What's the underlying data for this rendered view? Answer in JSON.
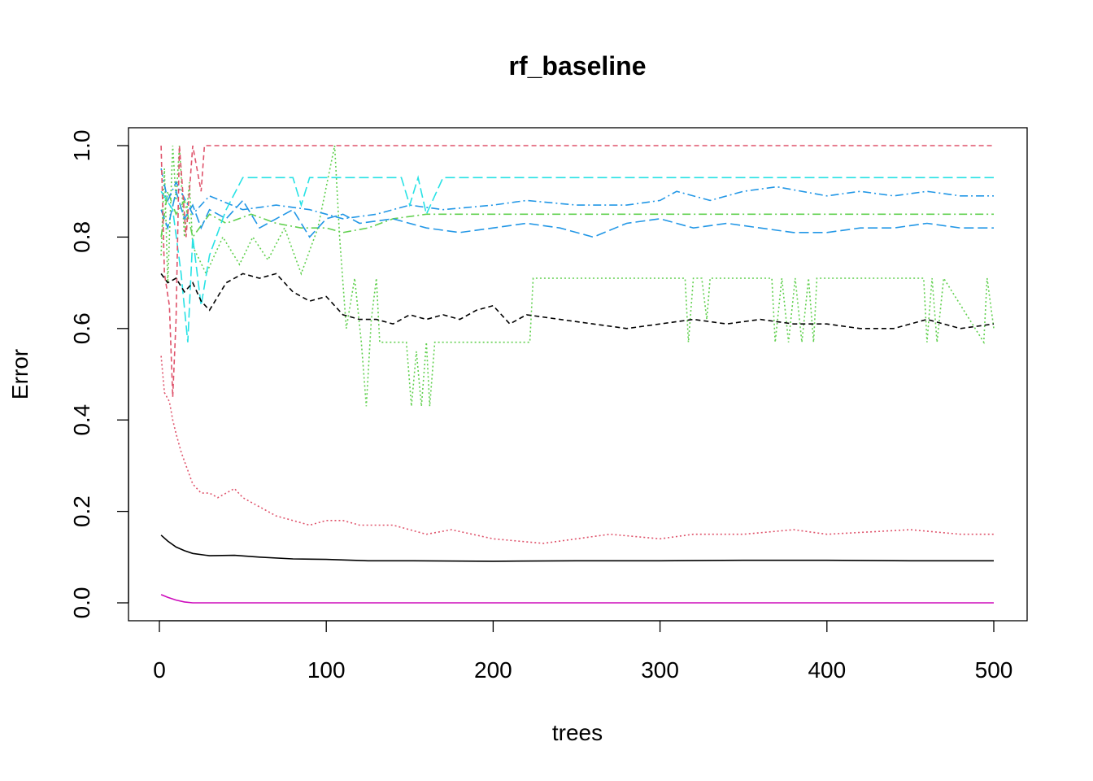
{
  "chart_data": {
    "type": "line",
    "title": "rf_baseline",
    "xlabel": "trees",
    "ylabel": "Error",
    "xlim": [
      0,
      500
    ],
    "ylim": [
      0.0,
      1.0
    ],
    "x_ticks": [
      "0",
      "100",
      "200",
      "300",
      "400",
      "500"
    ],
    "y_ticks": [
      "0.0",
      "0.2",
      "0.4",
      "0.6",
      "0.8",
      "1.0"
    ],
    "grid": false,
    "legend": "none",
    "series": [
      {
        "color": "#000000",
        "dash": "solid",
        "points": [
          [
            1,
            0.148
          ],
          [
            5,
            0.135
          ],
          [
            10,
            0.122
          ],
          [
            15,
            0.114
          ],
          [
            20,
            0.108
          ],
          [
            30,
            0.103
          ],
          [
            45,
            0.104
          ],
          [
            60,
            0.1
          ],
          [
            80,
            0.096
          ],
          [
            100,
            0.095
          ],
          [
            125,
            0.092
          ],
          [
            150,
            0.092
          ],
          [
            200,
            0.091
          ],
          [
            250,
            0.092
          ],
          [
            300,
            0.092
          ],
          [
            350,
            0.093
          ],
          [
            400,
            0.093
          ],
          [
            450,
            0.092
          ],
          [
            500,
            0.092
          ]
        ]
      },
      {
        "color": "#DF536B",
        "dash": "dotted",
        "points": [
          [
            1,
            0.54
          ],
          [
            3,
            0.46
          ],
          [
            6,
            0.44
          ],
          [
            8,
            0.4
          ],
          [
            10,
            0.37
          ],
          [
            13,
            0.33
          ],
          [
            16,
            0.3
          ],
          [
            20,
            0.26
          ],
          [
            25,
            0.24
          ],
          [
            30,
            0.24
          ],
          [
            35,
            0.23
          ],
          [
            40,
            0.24
          ],
          [
            45,
            0.25
          ],
          [
            50,
            0.23
          ],
          [
            55,
            0.22
          ],
          [
            60,
            0.21
          ],
          [
            70,
            0.19
          ],
          [
            80,
            0.18
          ],
          [
            90,
            0.17
          ],
          [
            100,
            0.18
          ],
          [
            110,
            0.18
          ],
          [
            120,
            0.17
          ],
          [
            140,
            0.17
          ],
          [
            160,
            0.15
          ],
          [
            175,
            0.16
          ],
          [
            200,
            0.14
          ],
          [
            230,
            0.13
          ],
          [
            250,
            0.14
          ],
          [
            270,
            0.15
          ],
          [
            300,
            0.14
          ],
          [
            320,
            0.15
          ],
          [
            350,
            0.15
          ],
          [
            380,
            0.16
          ],
          [
            400,
            0.15
          ],
          [
            450,
            0.16
          ],
          [
            480,
            0.15
          ],
          [
            500,
            0.15
          ]
        ]
      },
      {
        "color": "#61D04F",
        "dash": "dotted",
        "points": [
          [
            1,
            0.76
          ],
          [
            3,
            0.95
          ],
          [
            5,
            0.7
          ],
          [
            8,
            1.0
          ],
          [
            10,
            0.88
          ],
          [
            12,
            1.0
          ],
          [
            15,
            0.8
          ],
          [
            18,
            0.92
          ],
          [
            20,
            0.78
          ],
          [
            28,
            0.72
          ],
          [
            38,
            0.8
          ],
          [
            48,
            0.74
          ],
          [
            56,
            0.8
          ],
          [
            65,
            0.75
          ],
          [
            75,
            0.82
          ],
          [
            85,
            0.72
          ],
          [
            95,
            0.82
          ],
          [
            105,
            1.0
          ],
          [
            108,
            0.8
          ],
          [
            112,
            0.6
          ],
          [
            117,
            0.71
          ],
          [
            121,
            0.57
          ],
          [
            124,
            0.43
          ],
          [
            127,
            0.62
          ],
          [
            130,
            0.71
          ],
          [
            132,
            0.57
          ],
          [
            148,
            0.57
          ],
          [
            151,
            0.43
          ],
          [
            154,
            0.55
          ],
          [
            157,
            0.43
          ],
          [
            160,
            0.57
          ],
          [
            162,
            0.43
          ],
          [
            165,
            0.57
          ],
          [
            222,
            0.57
          ],
          [
            224,
            0.71
          ],
          [
            315,
            0.71
          ],
          [
            317,
            0.57
          ],
          [
            320,
            0.71
          ],
          [
            325,
            0.71
          ],
          [
            328,
            0.62
          ],
          [
            330,
            0.71
          ],
          [
            367,
            0.71
          ],
          [
            369,
            0.57
          ],
          [
            373,
            0.71
          ],
          [
            377,
            0.57
          ],
          [
            381,
            0.71
          ],
          [
            385,
            0.57
          ],
          [
            389,
            0.71
          ],
          [
            392,
            0.57
          ],
          [
            394,
            0.71
          ],
          [
            458,
            0.71
          ],
          [
            460,
            0.57
          ],
          [
            463,
            0.71
          ],
          [
            466,
            0.57
          ],
          [
            470,
            0.71
          ],
          [
            494,
            0.57
          ],
          [
            496,
            0.71
          ],
          [
            500,
            0.6
          ]
        ]
      },
      {
        "color": "#61D04F",
        "dash": "dashdot",
        "points": [
          [
            1,
            0.8
          ],
          [
            5,
            0.9
          ],
          [
            10,
            0.85
          ],
          [
            15,
            0.88
          ],
          [
            20,
            0.8
          ],
          [
            30,
            0.85
          ],
          [
            40,
            0.83
          ],
          [
            55,
            0.85
          ],
          [
            70,
            0.83
          ],
          [
            85,
            0.82
          ],
          [
            100,
            0.82
          ],
          [
            110,
            0.81
          ],
          [
            125,
            0.82
          ],
          [
            140,
            0.84
          ],
          [
            160,
            0.85
          ],
          [
            200,
            0.85
          ],
          [
            300,
            0.85
          ],
          [
            400,
            0.85
          ],
          [
            500,
            0.85
          ]
        ]
      },
      {
        "color": "#2297E6",
        "dash": "longdash",
        "points": [
          [
            1,
            0.86
          ],
          [
            5,
            0.82
          ],
          [
            10,
            0.9
          ],
          [
            15,
            0.84
          ],
          [
            20,
            0.87
          ],
          [
            25,
            0.82
          ],
          [
            30,
            0.86
          ],
          [
            40,
            0.84
          ],
          [
            50,
            0.88
          ],
          [
            60,
            0.82
          ],
          [
            70,
            0.84
          ],
          [
            80,
            0.86
          ],
          [
            90,
            0.8
          ],
          [
            100,
            0.84
          ],
          [
            110,
            0.85
          ],
          [
            120,
            0.83
          ],
          [
            140,
            0.84
          ],
          [
            160,
            0.82
          ],
          [
            180,
            0.81
          ],
          [
            200,
            0.82
          ],
          [
            220,
            0.83
          ],
          [
            240,
            0.82
          ],
          [
            260,
            0.8
          ],
          [
            280,
            0.83
          ],
          [
            300,
            0.84
          ],
          [
            320,
            0.82
          ],
          [
            340,
            0.83
          ],
          [
            360,
            0.82
          ],
          [
            380,
            0.81
          ],
          [
            400,
            0.81
          ],
          [
            420,
            0.82
          ],
          [
            440,
            0.82
          ],
          [
            460,
            0.83
          ],
          [
            480,
            0.82
          ],
          [
            500,
            0.82
          ]
        ]
      },
      {
        "color": "#2297E6",
        "dash": "dashdot",
        "points": [
          [
            1,
            0.95
          ],
          [
            5,
            0.88
          ],
          [
            10,
            0.92
          ],
          [
            20,
            0.85
          ],
          [
            30,
            0.89
          ],
          [
            50,
            0.86
          ],
          [
            70,
            0.87
          ],
          [
            90,
            0.86
          ],
          [
            110,
            0.84
          ],
          [
            130,
            0.85
          ],
          [
            150,
            0.87
          ],
          [
            170,
            0.86
          ],
          [
            200,
            0.87
          ],
          [
            220,
            0.88
          ],
          [
            250,
            0.87
          ],
          [
            280,
            0.87
          ],
          [
            300,
            0.88
          ],
          [
            310,
            0.9
          ],
          [
            330,
            0.88
          ],
          [
            350,
            0.9
          ],
          [
            370,
            0.91
          ],
          [
            400,
            0.89
          ],
          [
            420,
            0.9
          ],
          [
            440,
            0.89
          ],
          [
            460,
            0.9
          ],
          [
            480,
            0.89
          ],
          [
            500,
            0.89
          ]
        ]
      },
      {
        "color": "#28E2E5",
        "dash": "longdash",
        "points": [
          [
            1,
            0.9
          ],
          [
            8,
            0.86
          ],
          [
            13,
            0.72
          ],
          [
            17,
            0.57
          ],
          [
            20,
            0.8
          ],
          [
            25,
            0.65
          ],
          [
            30,
            0.76
          ],
          [
            40,
            0.86
          ],
          [
            50,
            0.93
          ],
          [
            80,
            0.93
          ],
          [
            85,
            0.87
          ],
          [
            90,
            0.93
          ],
          [
            145,
            0.93
          ],
          [
            150,
            0.87
          ],
          [
            155,
            0.93
          ],
          [
            160,
            0.85
          ],
          [
            170,
            0.93
          ],
          [
            500,
            0.93
          ]
        ]
      },
      {
        "color": "#CD0BBC",
        "dash": "solid",
        "points": [
          [
            1,
            0.018
          ],
          [
            5,
            0.012
          ],
          [
            10,
            0.006
          ],
          [
            15,
            0.002
          ],
          [
            20,
            0.0
          ],
          [
            500,
            0.0
          ]
        ]
      },
      {
        "color": "#DF536B",
        "dash": "dashed",
        "points": [
          [
            1,
            1.0
          ],
          [
            3,
            0.72
          ],
          [
            6,
            0.65
          ],
          [
            8,
            0.45
          ],
          [
            10,
            0.62
          ],
          [
            12,
            1.0
          ],
          [
            16,
            0.8
          ],
          [
            20,
            1.0
          ],
          [
            25,
            0.9
          ],
          [
            27,
            1.0
          ],
          [
            500,
            1.0
          ]
        ]
      },
      {
        "color": "#000000",
        "dash": "dashed",
        "points": [
          [
            1,
            0.72
          ],
          [
            5,
            0.7
          ],
          [
            10,
            0.71
          ],
          [
            15,
            0.68
          ],
          [
            20,
            0.7
          ],
          [
            25,
            0.66
          ],
          [
            30,
            0.64
          ],
          [
            40,
            0.7
          ],
          [
            50,
            0.72
          ],
          [
            60,
            0.71
          ],
          [
            70,
            0.72
          ],
          [
            80,
            0.68
          ],
          [
            90,
            0.66
          ],
          [
            100,
            0.67
          ],
          [
            110,
            0.63
          ],
          [
            120,
            0.62
          ],
          [
            130,
            0.62
          ],
          [
            140,
            0.61
          ],
          [
            150,
            0.63
          ],
          [
            160,
            0.62
          ],
          [
            170,
            0.63
          ],
          [
            180,
            0.62
          ],
          [
            190,
            0.64
          ],
          [
            200,
            0.65
          ],
          [
            210,
            0.61
          ],
          [
            220,
            0.63
          ],
          [
            240,
            0.62
          ],
          [
            260,
            0.61
          ],
          [
            280,
            0.6
          ],
          [
            300,
            0.61
          ],
          [
            320,
            0.62
          ],
          [
            340,
            0.61
          ],
          [
            360,
            0.62
          ],
          [
            380,
            0.61
          ],
          [
            400,
            0.61
          ],
          [
            420,
            0.6
          ],
          [
            440,
            0.6
          ],
          [
            460,
            0.62
          ],
          [
            480,
            0.6
          ],
          [
            500,
            0.61
          ]
        ]
      }
    ]
  }
}
